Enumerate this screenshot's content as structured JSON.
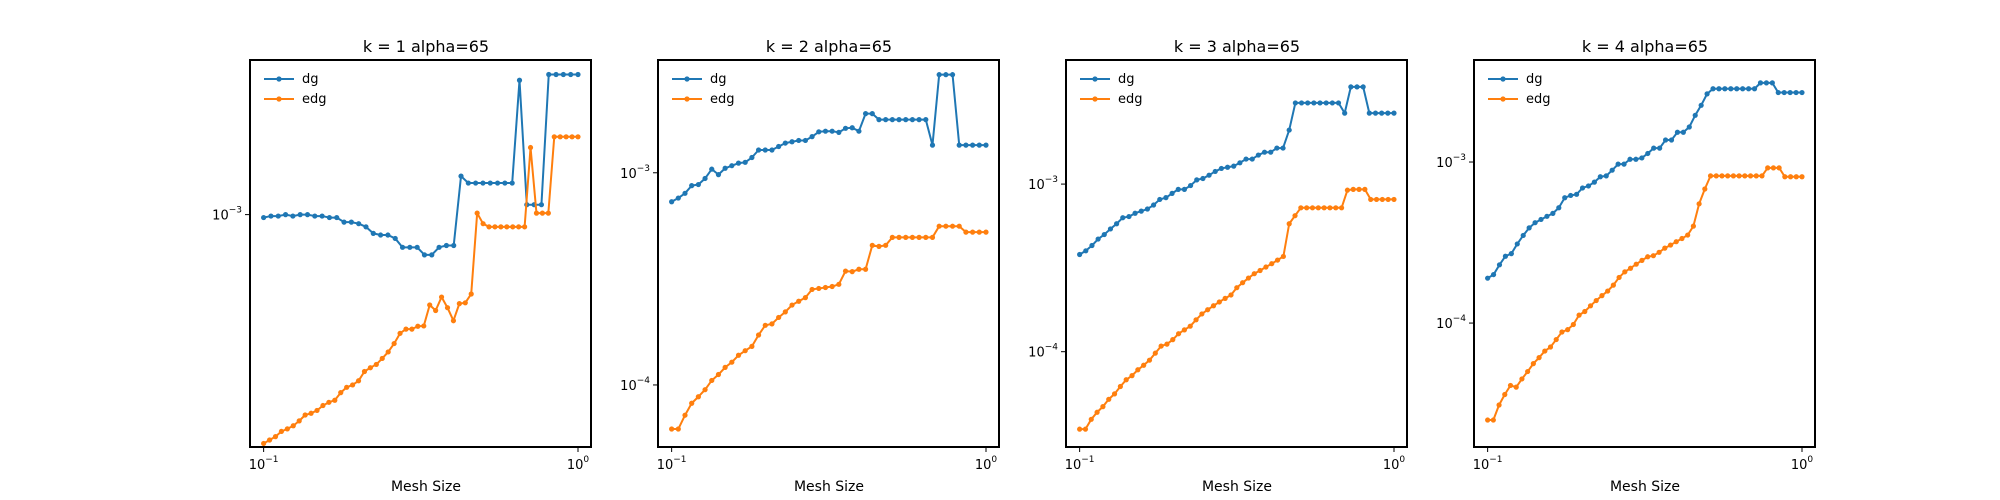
{
  "colors": {
    "dg": "#1f77b4",
    "edg": "#ff7f0e",
    "axes": "#000000",
    "background": "#ffffff"
  },
  "chart_data": [
    {
      "type": "line",
      "title": "k = 1 alpha=65",
      "xlabel": "Mesh Size",
      "ylabel": "",
      "xscale": "log",
      "yscale": "log",
      "xlim": [
        0.0905,
        1.1
      ],
      "ylim": [
        0.000205,
        0.00287
      ],
      "xticks": [
        {
          "value": 0.1,
          "base": "10",
          "exp": "−1"
        },
        {
          "value": 1,
          "base": "10",
          "exp": "0"
        }
      ],
      "yticks": [
        {
          "value": 0.001,
          "base": "10",
          "exp": "−3"
        }
      ],
      "grid": false,
      "legend_position": "top-left",
      "series": [
        {
          "name": "dg",
          "color": "#1f77b4",
          "y": [
            0.00098,
            0.00099,
            0.00099,
            0.001,
            0.00099,
            0.001,
            0.001,
            0.00099,
            0.00099,
            0.00098,
            0.00098,
            0.00095,
            0.00095,
            0.00094,
            0.00092,
            0.00088,
            0.00087,
            0.00087,
            0.00085,
            0.0008,
            0.0008,
            0.0008,
            0.00076,
            0.00076,
            0.0008,
            0.00081,
            0.00081,
            0.0013,
            0.00124,
            0.00124,
            0.00124,
            0.00124,
            0.00124,
            0.00124,
            0.00124,
            0.0025,
            0.00107,
            0.00107,
            0.00107,
            0.0026,
            0.0026,
            0.0026,
            0.0026,
            0.0026
          ]
        },
        {
          "name": "edg",
          "color": "#ff7f0e",
          "y": [
            0.00021,
            0.000215,
            0.00022,
            0.000228,
            0.000232,
            0.000237,
            0.000245,
            0.000255,
            0.000258,
            0.000263,
            0.000272,
            0.000278,
            0.000282,
            0.000297,
            0.000308,
            0.000313,
            0.000322,
            0.000343,
            0.000352,
            0.00036,
            0.000375,
            0.000392,
            0.000415,
            0.000445,
            0.000458,
            0.000458,
            0.000467,
            0.000468,
            0.00054,
            0.00052,
            0.00057,
            0.00053,
            0.000485,
            0.000545,
            0.000548,
            0.000582,
            0.00101,
            0.00094,
            0.00092,
            0.00092,
            0.00092,
            0.00092,
            0.00092,
            0.00092,
            0.00092,
            0.00158,
            0.00101,
            0.00101,
            0.00101,
            0.0017,
            0.0017,
            0.0017,
            0.0017,
            0.0017
          ]
        }
      ]
    },
    {
      "type": "line",
      "title": "k = 2 alpha=65",
      "xlabel": "Mesh Size",
      "ylabel": "",
      "xscale": "log",
      "yscale": "log",
      "xlim": [
        0.0905,
        1.1
      ],
      "ylim": [
        5.1e-05,
        0.0034
      ],
      "xticks": [
        {
          "value": 0.1,
          "base": "10",
          "exp": "−1"
        },
        {
          "value": 1,
          "base": "10",
          "exp": "0"
        }
      ],
      "yticks": [
        {
          "value": 0.001,
          "base": "10",
          "exp": "−3"
        },
        {
          "value": 0.0001,
          "base": "10",
          "exp": "−4"
        }
      ],
      "grid": false,
      "legend_position": "top-left",
      "series": [
        {
          "name": "dg",
          "color": "#1f77b4",
          "y": [
            0.00073,
            0.00076,
            0.0008,
            0.00087,
            0.00088,
            0.00094,
            0.00104,
            0.00098,
            0.00105,
            0.00108,
            0.00111,
            0.00112,
            0.00118,
            0.00128,
            0.00128,
            0.00128,
            0.00133,
            0.00138,
            0.0014,
            0.00142,
            0.00142,
            0.00148,
            0.00156,
            0.00157,
            0.00157,
            0.00155,
            0.00162,
            0.00163,
            0.00157,
            0.0019,
            0.0019,
            0.00178,
            0.00178,
            0.00178,
            0.00178,
            0.00178,
            0.00178,
            0.00178,
            0.00178,
            0.00135,
            0.0029,
            0.0029,
            0.0029,
            0.00135,
            0.00135,
            0.00135,
            0.00135,
            0.00135
          ]
        },
        {
          "name": "edg",
          "color": "#ff7f0e",
          "y": [
            6.2e-05,
            6.2e-05,
            7.2e-05,
            8.2e-05,
            8.8e-05,
            9.5e-05,
            0.000105,
            0.000112,
            0.000121,
            0.000128,
            0.000138,
            0.000145,
            0.000152,
            0.000172,
            0.000191,
            0.000194,
            0.000208,
            0.000221,
            0.000238,
            0.000248,
            0.000258,
            0.000282,
            0.000285,
            0.000288,
            0.000291,
            0.000298,
            0.000344,
            0.000342,
            0.000351,
            0.000351,
            0.000455,
            0.00045,
            0.000455,
            0.000496,
            0.000496,
            0.000496,
            0.000496,
            0.000496,
            0.000496,
            0.000496,
            0.00056,
            0.00056,
            0.00056,
            0.00056,
            0.000525,
            0.000525,
            0.000525,
            0.000525
          ]
        }
      ]
    },
    {
      "type": "line",
      "title": "k = 3 alpha=65",
      "xlabel": "Mesh Size",
      "ylabel": "",
      "xscale": "log",
      "yscale": "log",
      "xlim": [
        0.0905,
        1.1
      ],
      "ylim": [
        2.7e-05,
        0.0055
      ],
      "xticks": [
        {
          "value": 0.1,
          "base": "10",
          "exp": "−1"
        },
        {
          "value": 1,
          "base": "10",
          "exp": "0"
        }
      ],
      "yticks": [
        {
          "value": 0.001,
          "base": "10",
          "exp": "−3"
        },
        {
          "value": 0.0001,
          "base": "10",
          "exp": "−4"
        }
      ],
      "grid": false,
      "legend_position": "top-left",
      "series": [
        {
          "name": "dg",
          "color": "#1f77b4",
          "y": [
            0.00038,
            0.0004,
            0.00043,
            0.00047,
            0.0005,
            0.00054,
            0.00058,
            0.00063,
            0.00064,
            0.00067,
            0.00069,
            0.00071,
            0.00075,
            0.00081,
            0.00083,
            0.00088,
            0.00093,
            0.00093,
            0.00098,
            0.00106,
            0.00108,
            0.00113,
            0.00119,
            0.00124,
            0.00126,
            0.00128,
            0.00134,
            0.00141,
            0.00141,
            0.00149,
            0.00155,
            0.00155,
            0.00164,
            0.00164,
            0.0021,
            0.00305,
            0.00305,
            0.00305,
            0.00305,
            0.00305,
            0.00305,
            0.00305,
            0.00305,
            0.00265,
            0.0038,
            0.0038,
            0.0038,
            0.00265,
            0.00265,
            0.00265,
            0.00265,
            0.00265
          ]
        },
        {
          "name": "edg",
          "color": "#ff7f0e",
          "y": [
            3.45e-05,
            3.45e-05,
            3.95e-05,
            4.35e-05,
            4.7e-05,
            5.2e-05,
            5.6e-05,
            6.2e-05,
            6.8e-05,
            7.2e-05,
            7.8e-05,
            8.3e-05,
            8.9e-05,
            9.8e-05,
            0.000108,
            0.000111,
            0.000118,
            0.000128,
            0.000135,
            0.000142,
            0.000155,
            0.000168,
            0.000178,
            0.000188,
            0.000198,
            0.000208,
            0.000218,
            0.000241,
            0.000258,
            0.000275,
            0.000292,
            0.000305,
            0.00032,
            0.000335,
            0.000352,
            0.00037,
            0.00058,
            0.000648,
            0.000722,
            0.000722,
            0.000722,
            0.000722,
            0.000722,
            0.000722,
            0.000722,
            0.000722,
            0.00092,
            0.00093,
            0.00093,
            0.00093,
            0.00081,
            0.00081,
            0.00081,
            0.00081,
            0.00081
          ]
        }
      ]
    },
    {
      "type": "line",
      "title": "k = 4 alpha=65",
      "xlabel": "Mesh Size",
      "ylabel": "",
      "xscale": "log",
      "yscale": "log",
      "xlim": [
        0.0905,
        1.1
      ],
      "ylim": [
        1.7e-05,
        0.0043
      ],
      "xticks": [
        {
          "value": 0.1,
          "base": "10",
          "exp": "−1"
        },
        {
          "value": 1,
          "base": "10",
          "exp": "0"
        }
      ],
      "yticks": [
        {
          "value": 0.001,
          "base": "10",
          "exp": "−3"
        },
        {
          "value": 0.0001,
          "base": "10",
          "exp": "−4"
        }
      ],
      "grid": false,
      "legend_position": "top-left",
      "series": [
        {
          "name": "dg",
          "color": "#1f77b4",
          "y": [
            0.00019,
            0.0002,
            0.00023,
            0.00026,
            0.00027,
            0.00031,
            0.00035,
            0.00039,
            0.00042,
            0.00044,
            0.00046,
            0.00048,
            0.00052,
            0.0006,
            0.00062,
            0.00063,
            0.00069,
            0.00071,
            0.00075,
            0.00081,
            0.00082,
            0.00089,
            0.00097,
            0.00097,
            0.00104,
            0.00104,
            0.00106,
            0.00113,
            0.00122,
            0.00122,
            0.00137,
            0.00137,
            0.00153,
            0.00153,
            0.00165,
            0.00195,
            0.00225,
            0.00265,
            0.00285,
            0.00285,
            0.00285,
            0.00285,
            0.00285,
            0.00285,
            0.00285,
            0.00285,
            0.0031,
            0.0031,
            0.0031,
            0.0027,
            0.0027,
            0.0027,
            0.0027,
            0.0027
          ]
        },
        {
          "name": "edg",
          "color": "#ff7f0e",
          "y": [
            2.5e-05,
            2.5e-05,
            3.1e-05,
            3.6e-05,
            4.1e-05,
            4e-05,
            4.5e-05,
            5e-05,
            5.6e-05,
            6.1e-05,
            6.7e-05,
            7.1e-05,
            7.9e-05,
            8.8e-05,
            9.1e-05,
            9.8e-05,
            0.000112,
            0.000118,
            0.000128,
            0.000138,
            0.000148,
            0.000158,
            0.000172,
            0.000192,
            0.000208,
            0.000219,
            0.000232,
            0.000245,
            0.000258,
            0.000262,
            0.000275,
            0.000292,
            0.000305,
            0.00032,
            0.000335,
            0.000352,
            0.0004,
            0.00055,
            0.00068,
            0.00082,
            0.00082,
            0.00082,
            0.00082,
            0.00082,
            0.00082,
            0.00082,
            0.00082,
            0.00082,
            0.00082,
            0.00092,
            0.00092,
            0.00092,
            0.00081,
            0.00081,
            0.00081,
            0.00081
          ]
        }
      ]
    }
  ]
}
